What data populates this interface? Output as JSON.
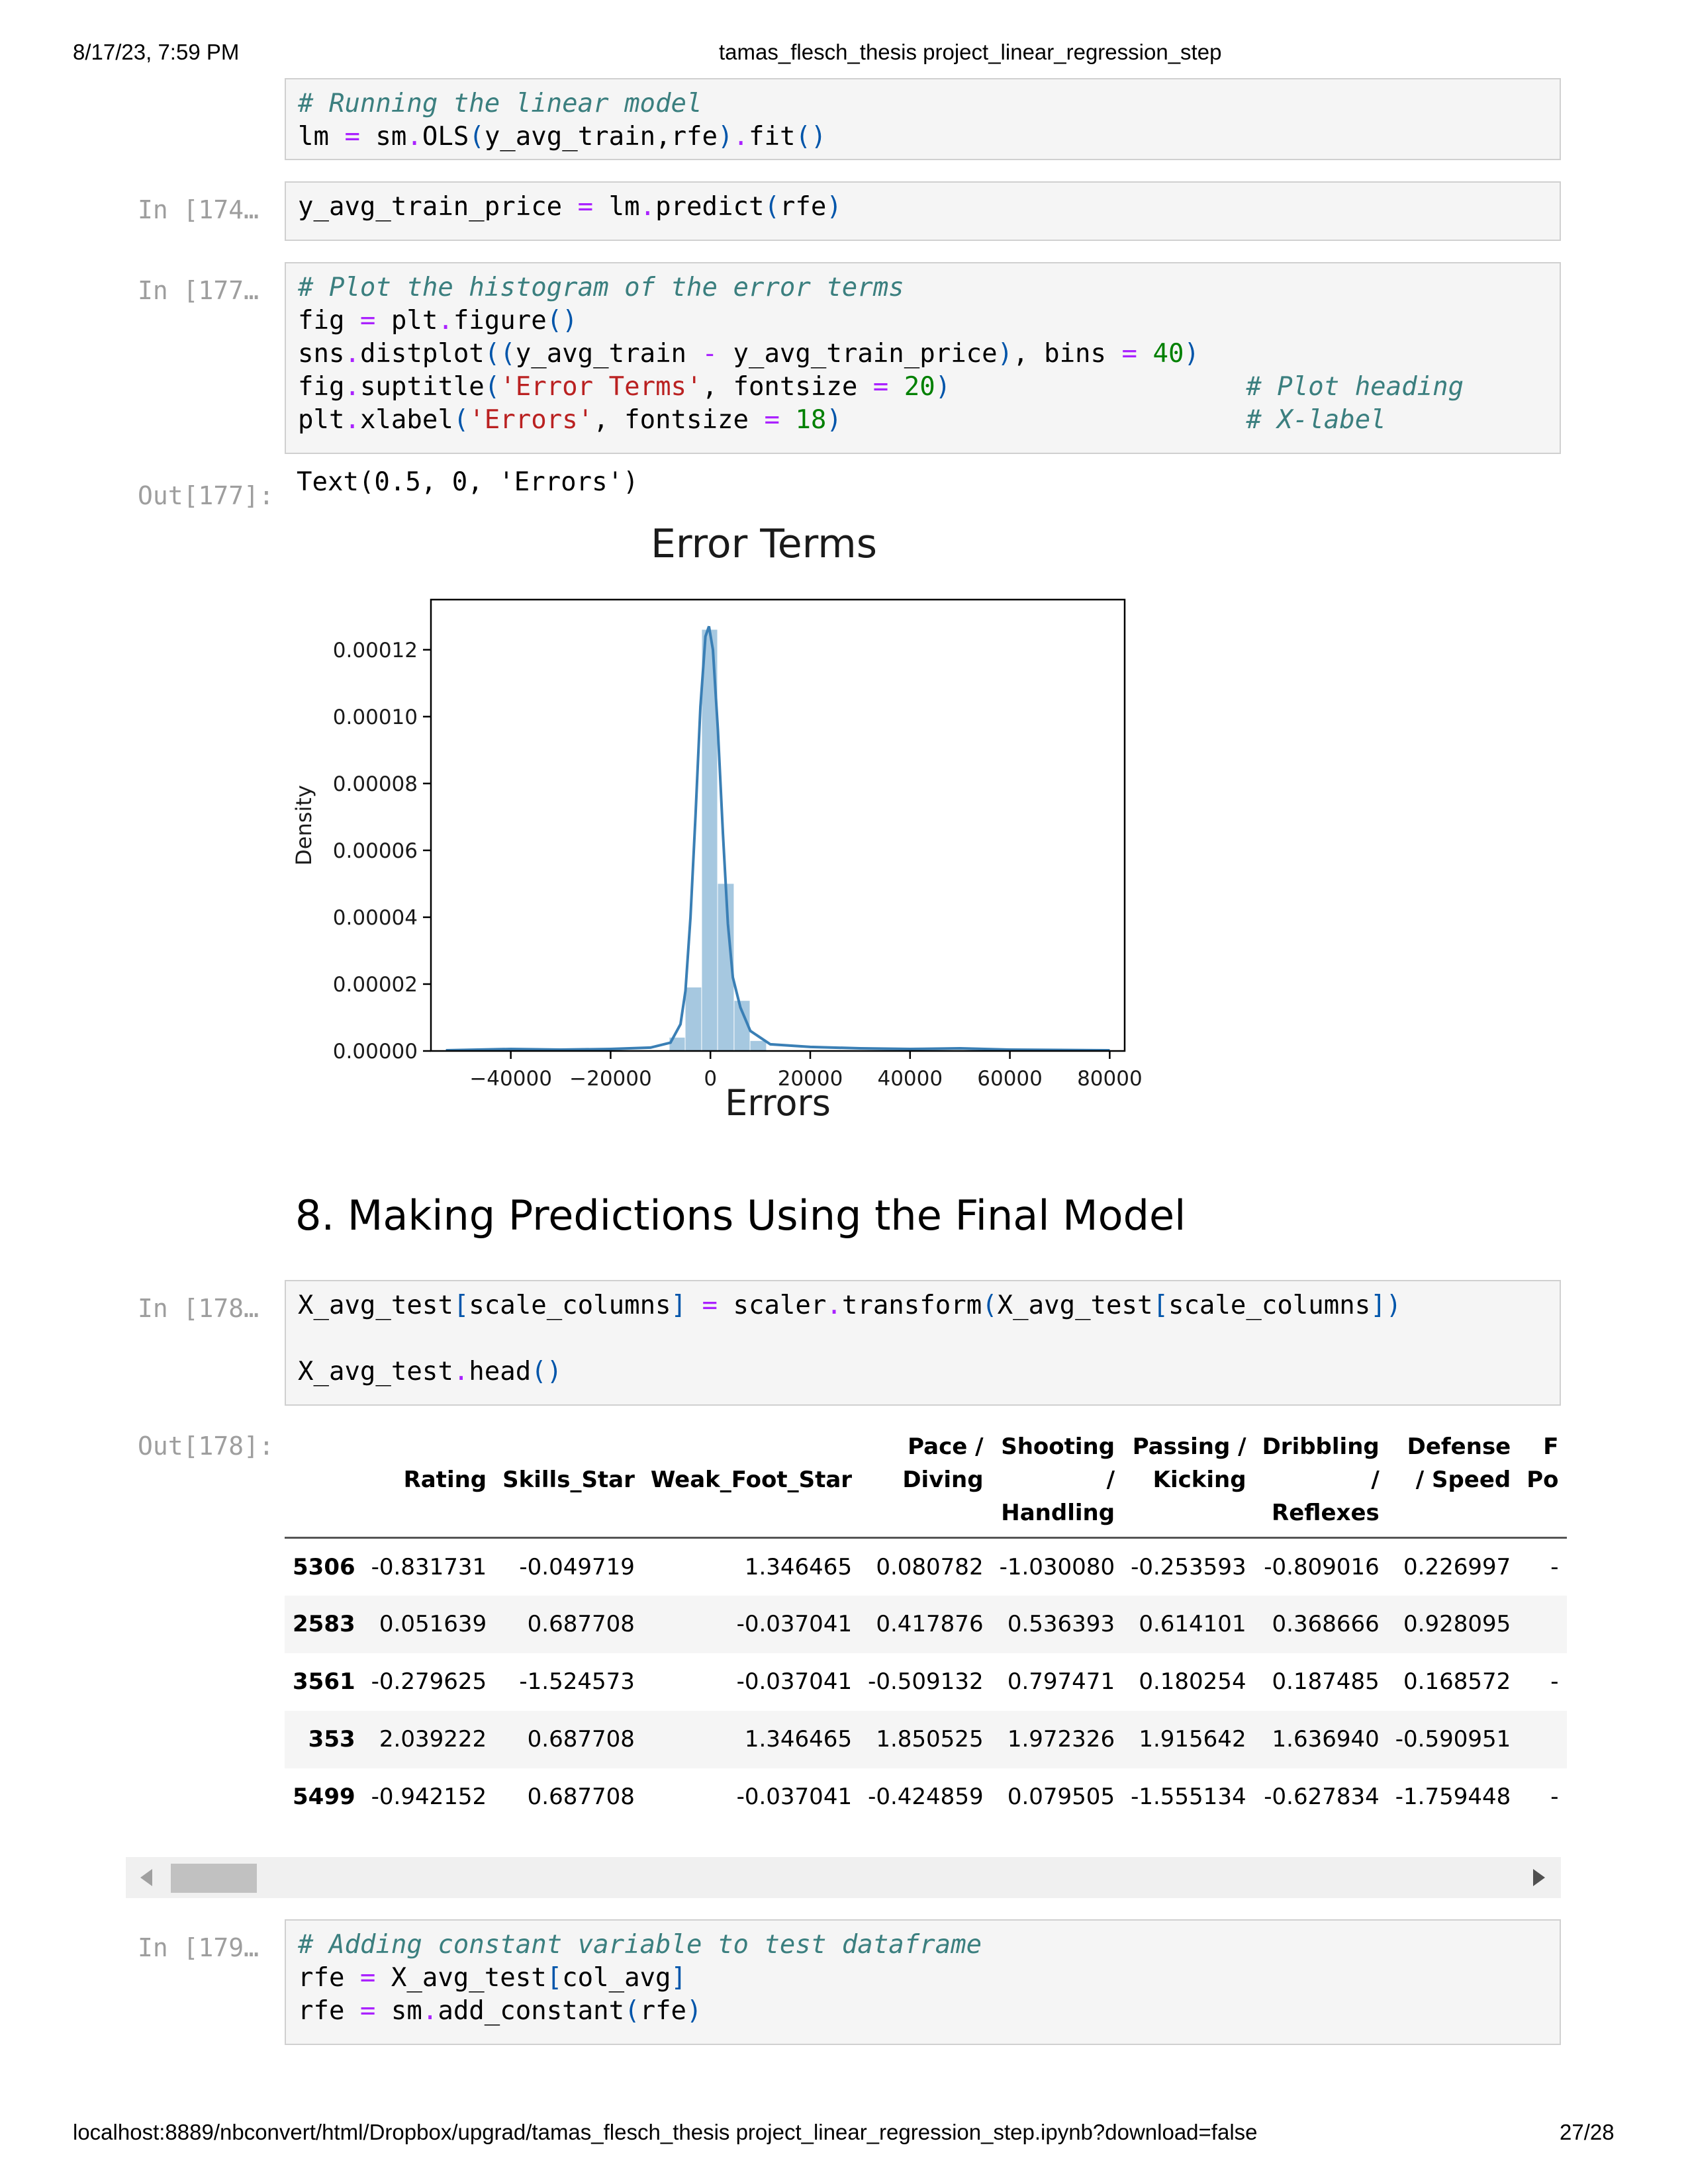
{
  "header": {
    "datetime": "8/17/23, 7:59 PM",
    "title": "tamas_flesch_thesis project_linear_regression_step"
  },
  "footer": {
    "url": "localhost:8889/nbconvert/html/Dropbox/upgrad/tamas_flesch_thesis project_linear_regression_step.ipynb?download=false",
    "page": "27/28"
  },
  "cells": {
    "c1": {
      "comment": "# Running the linear model"
    },
    "c2": {
      "prompt": "In [174…"
    },
    "c3": {
      "prompt": "In [177…",
      "comment": "# Plot the histogram of the error terms",
      "comment2": "# Plot heading",
      "comment3": "# X-label"
    },
    "out177": {
      "prompt": "Out[177]:",
      "text": "Text(0.5, 0, 'Errors')"
    },
    "heading": "8. Making Predictions Using the Final Model",
    "c4": {
      "prompt": "In [178…"
    },
    "out178": {
      "prompt": "Out[178]:"
    },
    "c5": {
      "prompt": "In [179…",
      "comment": "# Adding constant variable to test dataframe"
    }
  },
  "chart_data": {
    "type": "histogram",
    "title": "Error Terms",
    "xlabel": "Errors",
    "ylabel": "Density",
    "xlim": [
      -56000,
      83000
    ],
    "ylim": [
      0,
      0.000135
    ],
    "xticks": [
      -40000,
      -20000,
      0,
      20000,
      40000,
      60000,
      80000
    ],
    "xtick_labels": [
      "−40000",
      "−20000",
      "0",
      "20000",
      "40000",
      "60000",
      "80000"
    ],
    "yticks": [
      0,
      2e-05,
      4e-05,
      6e-05,
      8e-05,
      0.0001,
      0.00012
    ],
    "ytick_labels": [
      "0.00000",
      "0.00002",
      "0.00004",
      "0.00006",
      "0.00008",
      "0.00010",
      "0.00012"
    ],
    "bins": [
      {
        "x0": -8200,
        "x1": -5000,
        "density": 4e-06
      },
      {
        "x0": -5000,
        "x1": -1700,
        "density": 1.9e-05
      },
      {
        "x0": -1700,
        "x1": 1500,
        "density": 0.000126
      },
      {
        "x0": 1500,
        "x1": 4800,
        "density": 5e-05
      },
      {
        "x0": 4800,
        "x1": 8000,
        "density": 1.5e-05
      },
      {
        "x0": 8000,
        "x1": 11300,
        "density": 3e-06
      }
    ],
    "kde": [
      [
        -53000,
        2e-07
      ],
      [
        -40000,
        6e-07
      ],
      [
        -30000,
        4e-07
      ],
      [
        -20000,
        6e-07
      ],
      [
        -12000,
        1e-06
      ],
      [
        -8000,
        2.5e-06
      ],
      [
        -6000,
        8e-06
      ],
      [
        -5000,
        1.8e-05
      ],
      [
        -4000,
        4e-05
      ],
      [
        -3000,
        7e-05
      ],
      [
        -2000,
        0.000103
      ],
      [
        -1000,
        0.000124
      ],
      [
        -300,
        0.000127
      ],
      [
        500,
        0.00012
      ],
      [
        1500,
        9.6e-05
      ],
      [
        2500,
        6.5e-05
      ],
      [
        3500,
        3.8e-05
      ],
      [
        4500,
        2.2e-05
      ],
      [
        6000,
        1.3e-05
      ],
      [
        8000,
        6e-06
      ],
      [
        12000,
        2e-06
      ],
      [
        20000,
        1.2e-06
      ],
      [
        30000,
        8e-07
      ],
      [
        40000,
        6e-07
      ],
      [
        50000,
        8e-07
      ],
      [
        60000,
        4e-07
      ],
      [
        70000,
        3e-07
      ],
      [
        80000,
        2e-07
      ]
    ],
    "bar_color": "#a6c8e0",
    "line_color": "#3a7fb5"
  },
  "table": {
    "columns": [
      {
        "l1": "",
        "l2": "Rating",
        "l3": ""
      },
      {
        "l1": "",
        "l2": "Skills_Star",
        "l3": ""
      },
      {
        "l1": "",
        "l2": "Weak_Foot_Star",
        "l3": ""
      },
      {
        "l1": "Pace /",
        "l2": "Diving",
        "l3": ""
      },
      {
        "l1": "Shooting",
        "l2": "/",
        "l3": "Handling"
      },
      {
        "l1": "Passing /",
        "l2": "Kicking",
        "l3": ""
      },
      {
        "l1": "Dribbling",
        "l2": "/",
        "l3": "Reflexes"
      },
      {
        "l1": "Defense",
        "l2": "/ Speed",
        "l3": ""
      },
      {
        "l1": "F",
        "l2": "Po",
        "l3": ""
      }
    ],
    "rows": [
      {
        "index": "5306",
        "values": [
          "-0.831731",
          "-0.049719",
          "1.346465",
          "0.080782",
          "-1.030080",
          "-0.253593",
          "-0.809016",
          "0.226997",
          "-"
        ]
      },
      {
        "index": "2583",
        "values": [
          "0.051639",
          "0.687708",
          "-0.037041",
          "0.417876",
          "0.536393",
          "0.614101",
          "0.368666",
          "0.928095",
          ""
        ]
      },
      {
        "index": "3561",
        "values": [
          "-0.279625",
          "-1.524573",
          "-0.037041",
          "-0.509132",
          "0.797471",
          "0.180254",
          "0.187485",
          "0.168572",
          "-"
        ]
      },
      {
        "index": "353",
        "values": [
          "2.039222",
          "0.687708",
          "1.346465",
          "1.850525",
          "1.972326",
          "1.915642",
          "1.636940",
          "-0.590951",
          ""
        ]
      },
      {
        "index": "5499",
        "values": [
          "-0.942152",
          "0.687708",
          "-0.037041",
          "-0.424859",
          "0.079505",
          "-1.555134",
          "-0.627834",
          "-1.759448",
          "-"
        ]
      }
    ]
  }
}
